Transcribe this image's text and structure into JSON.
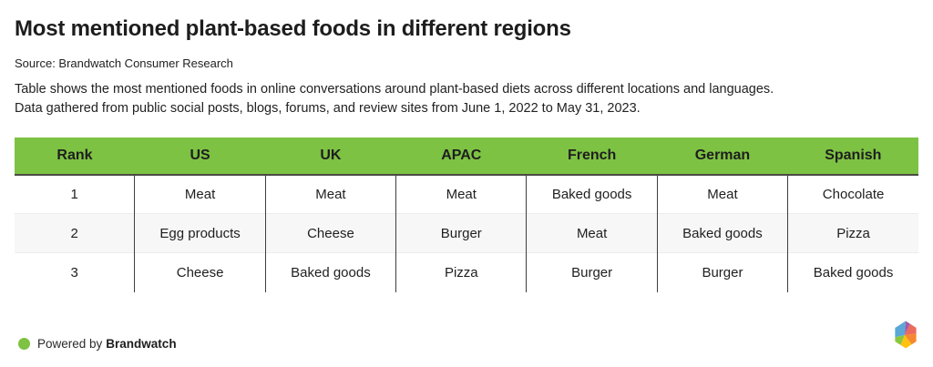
{
  "header": {
    "title": "Most mentioned plant-based foods in different regions",
    "source": "Source: Brandwatch Consumer Research",
    "description_line1": "Table shows the most mentioned foods in online conversations around plant-based diets across different locations and languages.",
    "description_line2": "Data gathered from public social posts, blogs, forums, and review sites from June 1, 2022 to May 31, 2023."
  },
  "chart_data": {
    "type": "table",
    "title": "Most mentioned plant-based foods in different regions",
    "columns": [
      "Rank",
      "US",
      "UK",
      "APAC",
      "French",
      "German",
      "Spanish"
    ],
    "rows": [
      [
        "1",
        "Meat",
        "Meat",
        "Meat",
        "Baked goods",
        "Meat",
        "Chocolate"
      ],
      [
        "2",
        "Egg products",
        "Cheese",
        "Burger",
        "Meat",
        "Baked goods",
        "Pizza"
      ],
      [
        "3",
        "Cheese",
        "Baked goods",
        "Pizza",
        "Burger",
        "Burger",
        "Baked goods"
      ]
    ],
    "layout_hints": {
      "header_background": "striped header green, alternating row shading on row 2",
      "column_dividers": "dark vertical lines between body columns only"
    }
  },
  "footer": {
    "powered_by": "Powered by",
    "brand": "Brandwatch"
  },
  "icons": {
    "powered_by_dot": "green-dot-icon",
    "brand_logo": "brandwatch-hexagon-logo"
  },
  "colors": {
    "header_green": "#7DC243",
    "dot_green": "#7DC243",
    "alt_row": "#F7F7F7",
    "divider_dark": "#3E3E3E",
    "header_border": "#4A4A44",
    "logo_blue": "#5BA8D8",
    "logo_purple": "#A15CA8",
    "logo_red": "#ED6A5E",
    "logo_orange": "#F6892F",
    "logo_yellow": "#FFC20D",
    "logo_green": "#8CC63F"
  }
}
